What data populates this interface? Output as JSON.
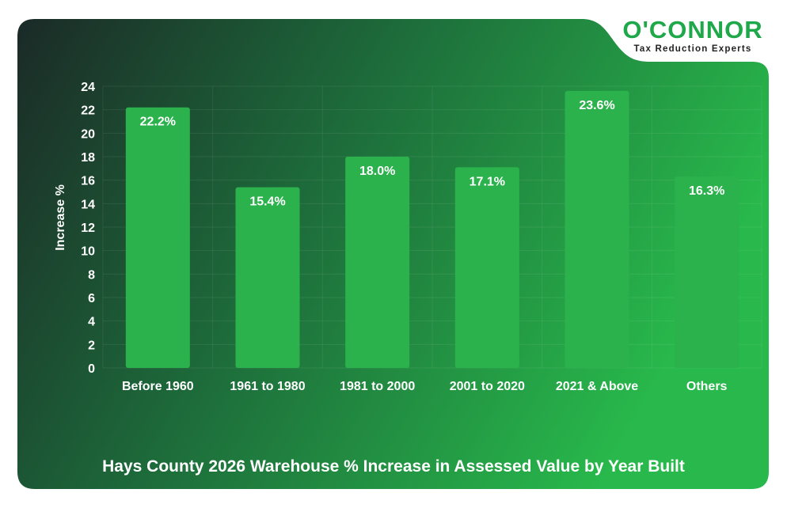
{
  "logo": {
    "brand": "O'CONNOR",
    "tagline": "Tax Reduction Experts"
  },
  "colors": {
    "bar": "#2bb24c",
    "card_dark": "#1a2f2a",
    "card_light": "#27b34a",
    "text": "#ffffff",
    "brand": "#1fa84a"
  },
  "chart_data": {
    "type": "bar",
    "title": "Hays County 2026 Warehouse % Increase in Assessed Value by Year Built",
    "xlabel": "",
    "ylabel": "Increase %",
    "categories": [
      "Before 1960",
      "1961 to 1980",
      "1981 to 2000",
      "2001 to 2020",
      "2021 & Above",
      "Others"
    ],
    "values": [
      22.2,
      15.4,
      18.0,
      17.1,
      23.6,
      16.3
    ],
    "value_labels": [
      "22.2%",
      "15.4%",
      "18.0%",
      "17.1%",
      "23.6%",
      "16.3%"
    ],
    "ylim": [
      0,
      24
    ],
    "yticks": [
      0,
      2,
      4,
      6,
      8,
      10,
      12,
      14,
      16,
      18,
      20,
      22,
      24
    ],
    "grid": true
  }
}
